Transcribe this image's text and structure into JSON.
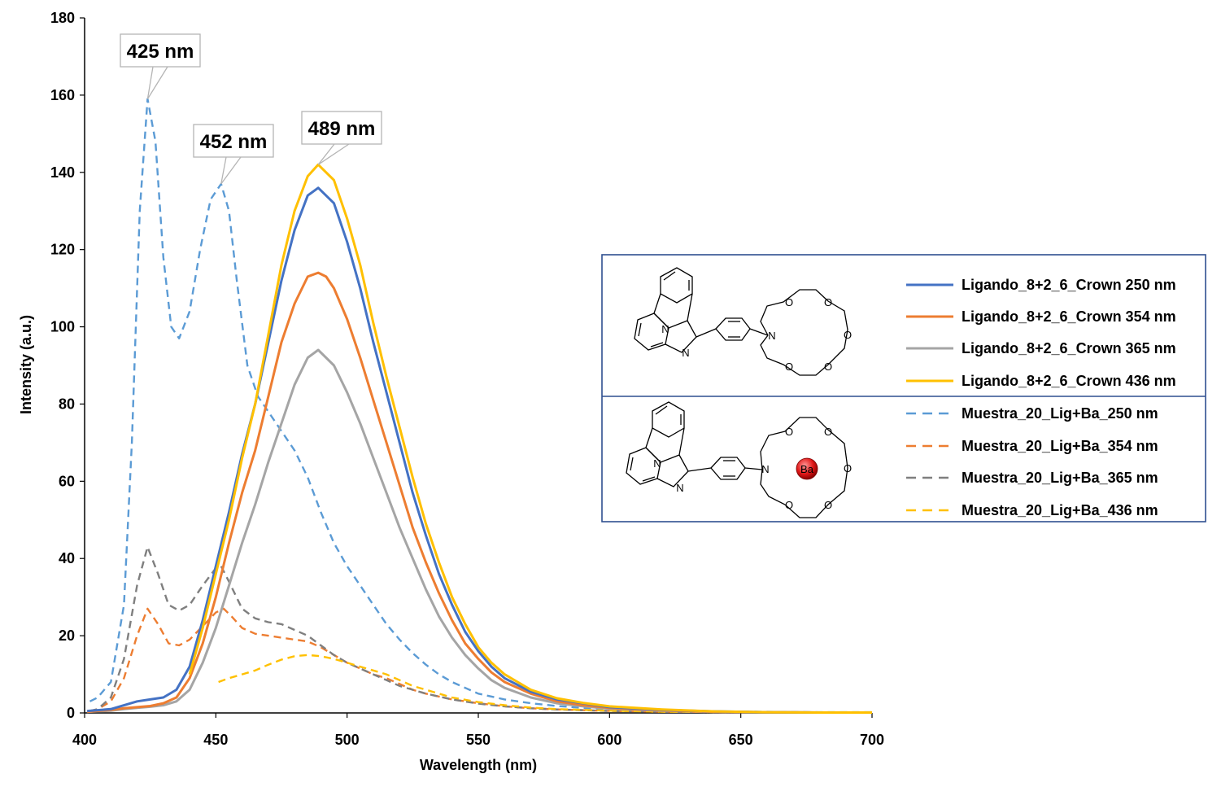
{
  "chart_data": {
    "type": "line",
    "xlabel": "Wavelength (nm)",
    "ylabel": "Intensity (a.u.)",
    "xlim": [
      400,
      700
    ],
    "ylim": [
      0,
      180
    ],
    "xticks": [
      400,
      450,
      500,
      550,
      600,
      650,
      700
    ],
    "yticks": [
      0,
      20,
      40,
      60,
      80,
      100,
      120,
      140,
      160,
      180
    ],
    "grid": false,
    "legend_position": "right",
    "annotations": [
      {
        "text": "425 nm",
        "x": 424,
        "y": 159
      },
      {
        "text": "452 nm",
        "x": 452,
        "y": 137
      },
      {
        "text": "489 nm",
        "x": 489,
        "y": 142
      }
    ],
    "series": [
      {
        "name": "Ligando_8+2_6_Crown 250 nm",
        "color": "#4472C4",
        "dash": false,
        "points": [
          [
            401,
            0.5
          ],
          [
            410,
            1
          ],
          [
            415,
            2
          ],
          [
            420,
            3
          ],
          [
            425,
            3.5
          ],
          [
            430,
            4
          ],
          [
            435,
            6
          ],
          [
            440,
            12
          ],
          [
            445,
            24
          ],
          [
            450,
            38
          ],
          [
            455,
            52
          ],
          [
            460,
            67
          ],
          [
            465,
            80
          ],
          [
            470,
            96
          ],
          [
            475,
            112
          ],
          [
            480,
            125
          ],
          [
            485,
            134
          ],
          [
            489,
            136
          ],
          [
            495,
            132
          ],
          [
            500,
            122
          ],
          [
            505,
            110
          ],
          [
            510,
            96
          ],
          [
            515,
            83
          ],
          [
            520,
            70
          ],
          [
            525,
            57
          ],
          [
            530,
            46
          ],
          [
            535,
            36
          ],
          [
            540,
            28
          ],
          [
            545,
            21
          ],
          [
            550,
            16
          ],
          [
            555,
            12
          ],
          [
            560,
            9
          ],
          [
            570,
            5.5
          ],
          [
            580,
            3.5
          ],
          [
            590,
            2.5
          ],
          [
            600,
            1.5
          ],
          [
            620,
            0.8
          ],
          [
            640,
            0.4
          ],
          [
            660,
            0.2
          ],
          [
            680,
            0.1
          ],
          [
            700,
            0.1
          ]
        ]
      },
      {
        "name": "Ligando_8+2_6_Crown 354 nm",
        "color": "#ED7D31",
        "dash": false,
        "points": [
          [
            401,
            0.3
          ],
          [
            410,
            0.8
          ],
          [
            415,
            1.2
          ],
          [
            420,
            1.5
          ],
          [
            425,
            1.8
          ],
          [
            430,
            2.5
          ],
          [
            435,
            4
          ],
          [
            440,
            9
          ],
          [
            445,
            18
          ],
          [
            450,
            30
          ],
          [
            455,
            44
          ],
          [
            460,
            57
          ],
          [
            465,
            68
          ],
          [
            470,
            82
          ],
          [
            475,
            96
          ],
          [
            480,
            106
          ],
          [
            485,
            113
          ],
          [
            489,
            114
          ],
          [
            492,
            113
          ],
          [
            495,
            110
          ],
          [
            500,
            102
          ],
          [
            505,
            92
          ],
          [
            510,
            81
          ],
          [
            515,
            70
          ],
          [
            520,
            59
          ],
          [
            525,
            48
          ],
          [
            530,
            39
          ],
          [
            535,
            31
          ],
          [
            540,
            24
          ],
          [
            545,
            18
          ],
          [
            550,
            14
          ],
          [
            555,
            10.5
          ],
          [
            560,
            8
          ],
          [
            570,
            5
          ],
          [
            580,
            3
          ],
          [
            590,
            2
          ],
          [
            600,
            1.3
          ],
          [
            620,
            0.7
          ],
          [
            640,
            0.3
          ],
          [
            660,
            0.2
          ],
          [
            680,
            0.1
          ],
          [
            700,
            0.1
          ]
        ]
      },
      {
        "name": "Ligando_8+2_6_Crown 365 nm",
        "color": "#A5A5A5",
        "dash": false,
        "points": [
          [
            401,
            0.3
          ],
          [
            410,
            0.6
          ],
          [
            415,
            1
          ],
          [
            420,
            1.3
          ],
          [
            425,
            1.6
          ],
          [
            430,
            2
          ],
          [
            435,
            3
          ],
          [
            440,
            6
          ],
          [
            445,
            13
          ],
          [
            450,
            22
          ],
          [
            455,
            33
          ],
          [
            460,
            44
          ],
          [
            465,
            54
          ],
          [
            470,
            65
          ],
          [
            475,
            75
          ],
          [
            480,
            85
          ],
          [
            485,
            92
          ],
          [
            489,
            94
          ],
          [
            495,
            90
          ],
          [
            500,
            83
          ],
          [
            505,
            75
          ],
          [
            510,
            66
          ],
          [
            515,
            57
          ],
          [
            520,
            48
          ],
          [
            525,
            40
          ],
          [
            530,
            32
          ],
          [
            535,
            25
          ],
          [
            540,
            19.5
          ],
          [
            545,
            15
          ],
          [
            550,
            11.5
          ],
          [
            555,
            8.5
          ],
          [
            560,
            6.5
          ],
          [
            570,
            4
          ],
          [
            580,
            2.5
          ],
          [
            590,
            1.7
          ],
          [
            600,
            1.1
          ],
          [
            620,
            0.6
          ],
          [
            640,
            0.3
          ],
          [
            660,
            0.2
          ],
          [
            680,
            0.1
          ],
          [
            700,
            0.1
          ]
        ]
      },
      {
        "name": "Ligando_8+2_6_Crown 436 nm",
        "color": "#FFC000",
        "dash": false,
        "points": [
          [
            440,
            10
          ],
          [
            445,
            22
          ],
          [
            450,
            36
          ],
          [
            455,
            50
          ],
          [
            460,
            66
          ],
          [
            465,
            80
          ],
          [
            470,
            98
          ],
          [
            475,
            116
          ],
          [
            480,
            130
          ],
          [
            485,
            139
          ],
          [
            489,
            142
          ],
          [
            495,
            138
          ],
          [
            500,
            128
          ],
          [
            505,
            116
          ],
          [
            510,
            101
          ],
          [
            515,
            87
          ],
          [
            520,
            74
          ],
          [
            525,
            61
          ],
          [
            530,
            49
          ],
          [
            535,
            39
          ],
          [
            540,
            30
          ],
          [
            545,
            23
          ],
          [
            550,
            17
          ],
          [
            555,
            13
          ],
          [
            560,
            10
          ],
          [
            570,
            6
          ],
          [
            580,
            3.8
          ],
          [
            590,
            2.6
          ],
          [
            600,
            1.7
          ],
          [
            620,
            0.9
          ],
          [
            640,
            0.4
          ],
          [
            660,
            0.2
          ],
          [
            680,
            0.1
          ],
          [
            700,
            0.1
          ]
        ]
      },
      {
        "name": "Muestra_20_Lig+Ba_250 nm",
        "color": "#5B9BD5",
        "dash": true,
        "points": [
          [
            402,
            3
          ],
          [
            405,
            4
          ],
          [
            410,
            8
          ],
          [
            415,
            28
          ],
          [
            418,
            70
          ],
          [
            421,
            130
          ],
          [
            424,
            159
          ],
          [
            427,
            148
          ],
          [
            430,
            118
          ],
          [
            433,
            100
          ],
          [
            436,
            97
          ],
          [
            440,
            104
          ],
          [
            444,
            120
          ],
          [
            448,
            133
          ],
          [
            452,
            137
          ],
          [
            455,
            130
          ],
          [
            458,
            112
          ],
          [
            462,
            90
          ],
          [
            466,
            82
          ],
          [
            470,
            78
          ],
          [
            475,
            73
          ],
          [
            480,
            68
          ],
          [
            485,
            61
          ],
          [
            490,
            52
          ],
          [
            495,
            44
          ],
          [
            500,
            38
          ],
          [
            505,
            33
          ],
          [
            510,
            28
          ],
          [
            515,
            23
          ],
          [
            520,
            19
          ],
          [
            525,
            15.5
          ],
          [
            530,
            12.5
          ],
          [
            535,
            10
          ],
          [
            540,
            8
          ],
          [
            545,
            6.5
          ],
          [
            550,
            5
          ],
          [
            560,
            3.5
          ],
          [
            570,
            2.5
          ],
          [
            580,
            1.8
          ],
          [
            590,
            1.3
          ],
          [
            600,
            1
          ],
          [
            620,
            0.6
          ],
          [
            640,
            0.4
          ],
          [
            660,
            0.3
          ],
          [
            680,
            0.2
          ],
          [
            700,
            0.2
          ]
        ]
      },
      {
        "name": "Muestra_20_Lig+Ba_354 nm",
        "color": "#ED7D31",
        "dash": true,
        "points": [
          [
            402,
            0.5
          ],
          [
            405,
            1
          ],
          [
            410,
            3
          ],
          [
            415,
            9
          ],
          [
            420,
            20
          ],
          [
            424,
            27
          ],
          [
            428,
            23
          ],
          [
            432,
            18
          ],
          [
            436,
            17.5
          ],
          [
            440,
            19
          ],
          [
            445,
            22.5
          ],
          [
            450,
            26
          ],
          [
            453,
            27
          ],
          [
            456,
            25
          ],
          [
            460,
            22
          ],
          [
            465,
            20.5
          ],
          [
            470,
            20
          ],
          [
            475,
            19.5
          ],
          [
            480,
            19
          ],
          [
            485,
            18.5
          ],
          [
            490,
            17
          ],
          [
            495,
            15
          ],
          [
            500,
            13
          ],
          [
            505,
            11.5
          ],
          [
            510,
            10
          ],
          [
            515,
            9
          ],
          [
            520,
            7.5
          ],
          [
            525,
            6
          ],
          [
            530,
            5
          ],
          [
            540,
            3.5
          ],
          [
            550,
            2.5
          ],
          [
            560,
            1.7
          ],
          [
            570,
            1.2
          ],
          [
            580,
            0.9
          ],
          [
            600,
            0.5
          ],
          [
            620,
            0.3
          ],
          [
            650,
            0.2
          ],
          [
            700,
            0.1
          ]
        ]
      },
      {
        "name": "Muestra_20_Lig+Ba_365 nm",
        "color": "#7F7F7F",
        "dash": true,
        "points": [
          [
            402,
            0.5
          ],
          [
            405,
            1
          ],
          [
            410,
            4
          ],
          [
            415,
            14
          ],
          [
            420,
            33
          ],
          [
            424,
            43
          ],
          [
            428,
            36
          ],
          [
            432,
            28
          ],
          [
            436,
            26.5
          ],
          [
            440,
            28
          ],
          [
            445,
            33
          ],
          [
            450,
            37.5
          ],
          [
            452,
            38
          ],
          [
            455,
            34
          ],
          [
            460,
            27
          ],
          [
            465,
            24.5
          ],
          [
            470,
            23.5
          ],
          [
            475,
            23
          ],
          [
            480,
            21.5
          ],
          [
            485,
            20
          ],
          [
            490,
            17.5
          ],
          [
            495,
            15
          ],
          [
            500,
            13
          ],
          [
            505,
            11.5
          ],
          [
            510,
            10
          ],
          [
            515,
            8.5
          ],
          [
            520,
            7
          ],
          [
            525,
            6
          ],
          [
            530,
            5
          ],
          [
            540,
            3.5
          ],
          [
            550,
            2.4
          ],
          [
            560,
            1.7
          ],
          [
            570,
            1.2
          ],
          [
            580,
            0.9
          ],
          [
            600,
            0.5
          ],
          [
            620,
            0.3
          ],
          [
            650,
            0.2
          ],
          [
            700,
            0.1
          ]
        ]
      },
      {
        "name": "Muestra_20_Lig+Ba_436 nm",
        "color": "#FFC000",
        "dash": true,
        "points": [
          [
            451,
            8
          ],
          [
            455,
            9
          ],
          [
            460,
            10
          ],
          [
            465,
            11
          ],
          [
            470,
            12.5
          ],
          [
            475,
            13.8
          ],
          [
            480,
            14.7
          ],
          [
            485,
            15
          ],
          [
            490,
            14.7
          ],
          [
            495,
            14
          ],
          [
            500,
            13
          ],
          [
            505,
            12
          ],
          [
            510,
            11
          ],
          [
            515,
            10
          ],
          [
            520,
            8.5
          ],
          [
            525,
            7
          ],
          [
            530,
            6
          ],
          [
            540,
            4
          ],
          [
            550,
            2.8
          ],
          [
            560,
            2
          ],
          [
            570,
            1.4
          ],
          [
            580,
            1
          ],
          [
            600,
            0.6
          ],
          [
            620,
            0.3
          ],
          [
            650,
            0.2
          ],
          [
            700,
            0.1
          ]
        ]
      }
    ]
  },
  "molecule": {
    "atoms": {
      "N1": "N",
      "N2": "N",
      "N3": "N",
      "O": "O",
      "Ba": "Ba"
    }
  }
}
